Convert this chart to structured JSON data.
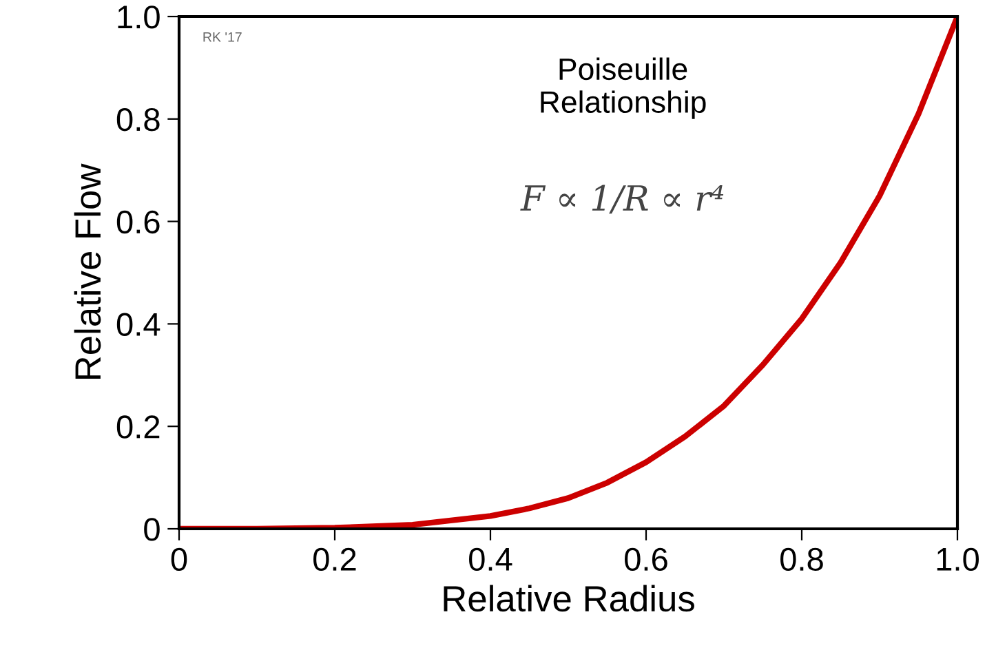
{
  "chart_data": {
    "type": "line",
    "xlabel": "Relative Radius",
    "ylabel": "Relative Flow",
    "x": [
      0,
      0.1,
      0.2,
      0.3,
      0.4,
      0.45,
      0.5,
      0.55,
      0.6,
      0.65,
      0.7,
      0.75,
      0.8,
      0.85,
      0.9,
      0.95,
      1.0
    ],
    "series": [
      {
        "color": "#cc0000",
        "values": [
          0,
          0.0,
          0.002,
          0.008,
          0.025,
          0.04,
          0.06,
          0.09,
          0.13,
          0.18,
          0.24,
          0.32,
          0.41,
          0.52,
          0.65,
          0.81,
          1.0
        ]
      }
    ],
    "xlim": [
      0,
      1.0
    ],
    "ylim": [
      0,
      1.0
    ],
    "xticks": [
      0,
      0.2,
      0.4,
      0.6,
      0.8,
      {
        "value": 1,
        "label": "1.0"
      }
    ],
    "yticks": [
      0,
      0.2,
      0.4,
      0.6,
      0.8,
      {
        "value": 1,
        "label": "1.0"
      }
    ],
    "grid": false,
    "marker": "none",
    "line_style": "solid",
    "annotations": [
      "RK '17",
      "Poiseuille\nRelationship",
      "F ∝ 1/R ∝ r⁴"
    ]
  }
}
